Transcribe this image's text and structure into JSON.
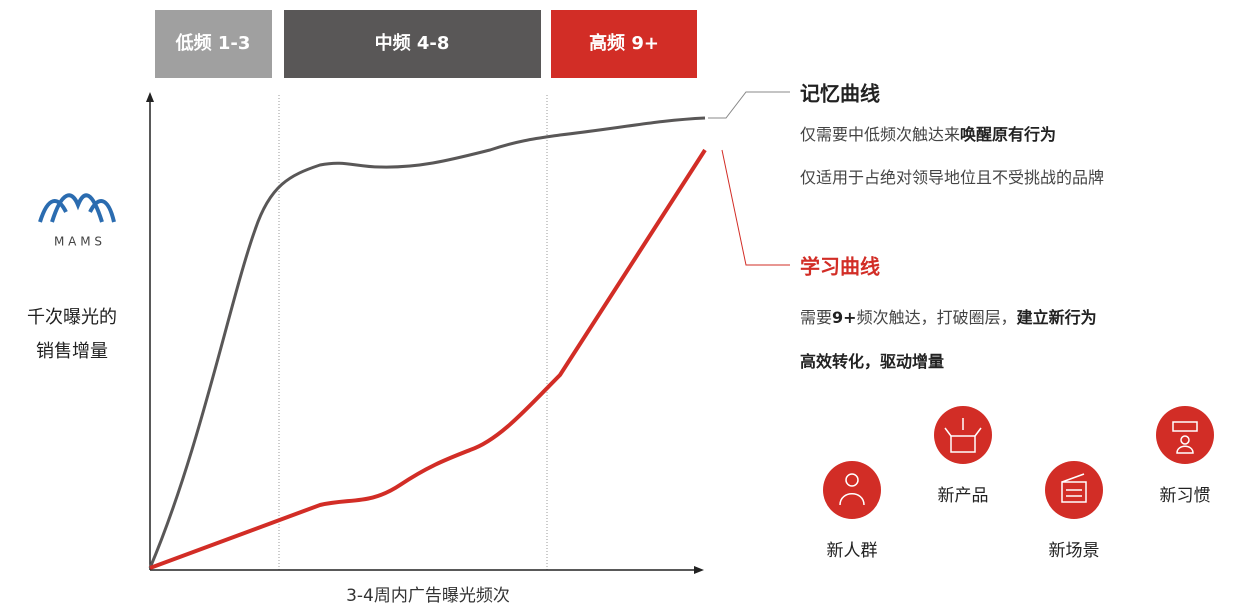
{
  "bands": [
    "低频 1-3",
    "中频 4-8",
    "高频 9+"
  ],
  "brand": "M A M S",
  "y_axis_label": [
    "千次曝光的",
    "销售增量"
  ],
  "x_axis_label": "3-4周内广告曝光频次",
  "memory_curve": {
    "title": "记忆曲线",
    "lines": [
      [
        {
          "text": "仅需要中低频次触达来"
        },
        {
          "text": "唤醒原有行为",
          "bold": true
        }
      ],
      [
        {
          "text": "仅适用于占绝对领导地位且不受挑战的品牌"
        }
      ]
    ]
  },
  "learning_curve": {
    "title": "学习曲线",
    "lines": [
      [
        {
          "text": "需要"
        },
        {
          "text": "9+",
          "bold": true
        },
        {
          "text": "频次触达，打破圈层，"
        },
        {
          "text": "建立新行为",
          "bold": true
        }
      ],
      [
        {
          "text": "高效转化，驱动增量",
          "bold": true
        }
      ]
    ]
  },
  "icons": [
    "新人群",
    "新产品",
    "新场景",
    "新习惯"
  ]
}
